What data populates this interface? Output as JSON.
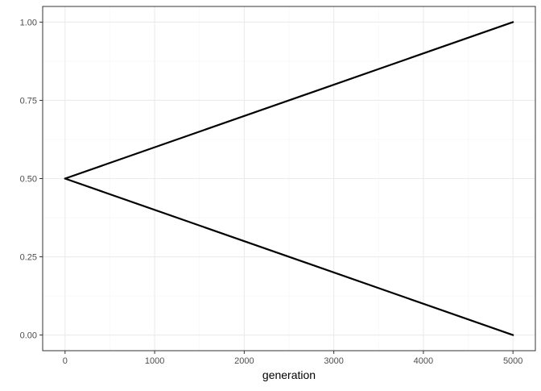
{
  "chart_data": {
    "type": "line",
    "title": "",
    "xlabel": "generation",
    "ylabel": "",
    "xlim": [
      -250,
      5250
    ],
    "ylim": [
      -0.05,
      1.05
    ],
    "x_ticks": [
      0,
      1000,
      2000,
      3000,
      4000,
      5000
    ],
    "x_tick_labels": [
      "0",
      "1000",
      "2000",
      "3000",
      "4000",
      "5000"
    ],
    "y_ticks": [
      0,
      0.25,
      0.5,
      0.75,
      1.0
    ],
    "y_tick_labels": [
      "0.00",
      "0.25",
      "0.50",
      "0.75",
      "1.00"
    ],
    "grid": true,
    "legend": "none",
    "series": [
      {
        "x": [
          0,
          5000
        ],
        "y": [
          0.5,
          1.0
        ]
      },
      {
        "x": [
          0,
          5000
        ],
        "y": [
          0.5,
          0.0
        ]
      }
    ],
    "colors": {
      "line": "#000000",
      "grid_major": "#ebebeb",
      "grid_minor": "#f5f5f5",
      "panel_border": "#333333",
      "tick_text": "#4d4d4d"
    }
  }
}
